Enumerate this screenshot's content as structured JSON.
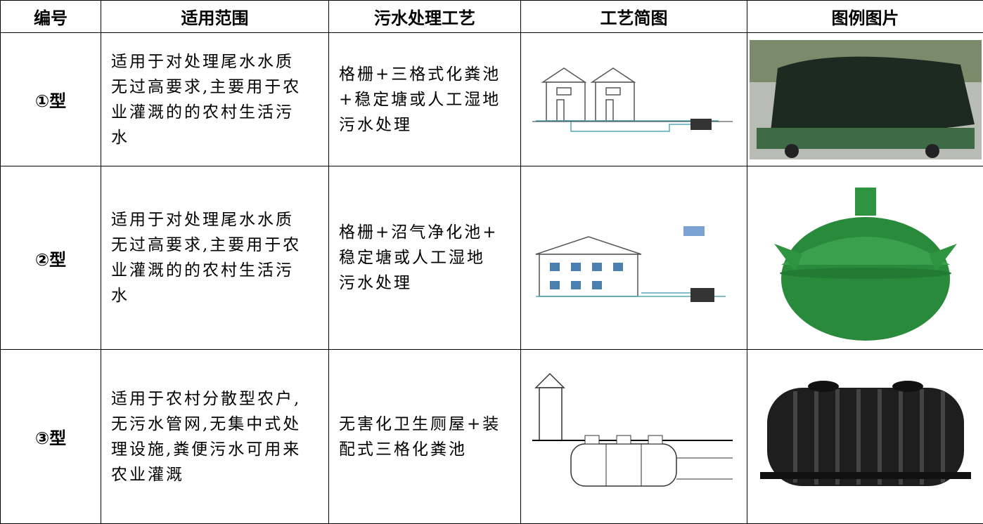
{
  "table": {
    "header": [
      "编号",
      "适用范围",
      "污水处理工艺",
      "工艺简图",
      "图例图片"
    ],
    "rows": [
      {
        "id": "①型",
        "scope": [
          "适用于对处理尾水水质",
          "无过高要求,主要用于农",
          "业灌溉的的农村生活污",
          "水"
        ],
        "process": [
          "格栅+三格式化粪池",
          "+稳定塘或人工湿地",
          "污水处理"
        ]
      },
      {
        "id": "②型",
        "scope": [
          "适用于对处理尾水水质",
          "无过高要求,主要用于农",
          "业灌溉的的农村生活污",
          "水"
        ],
        "process": [
          "格栅+沼气净化池+",
          "稳定塘或人工湿地",
          "污水处理"
        ]
      },
      {
        "id": "③型",
        "scope": [
          "适用于农村分散型农户,",
          "无污水管网,无集中式处",
          "理设施,粪便污水可用来",
          "农业灌溉"
        ],
        "process": [
          "无害化卫生厕屋+装",
          "配式三格化粪池"
        ]
      }
    ]
  }
}
